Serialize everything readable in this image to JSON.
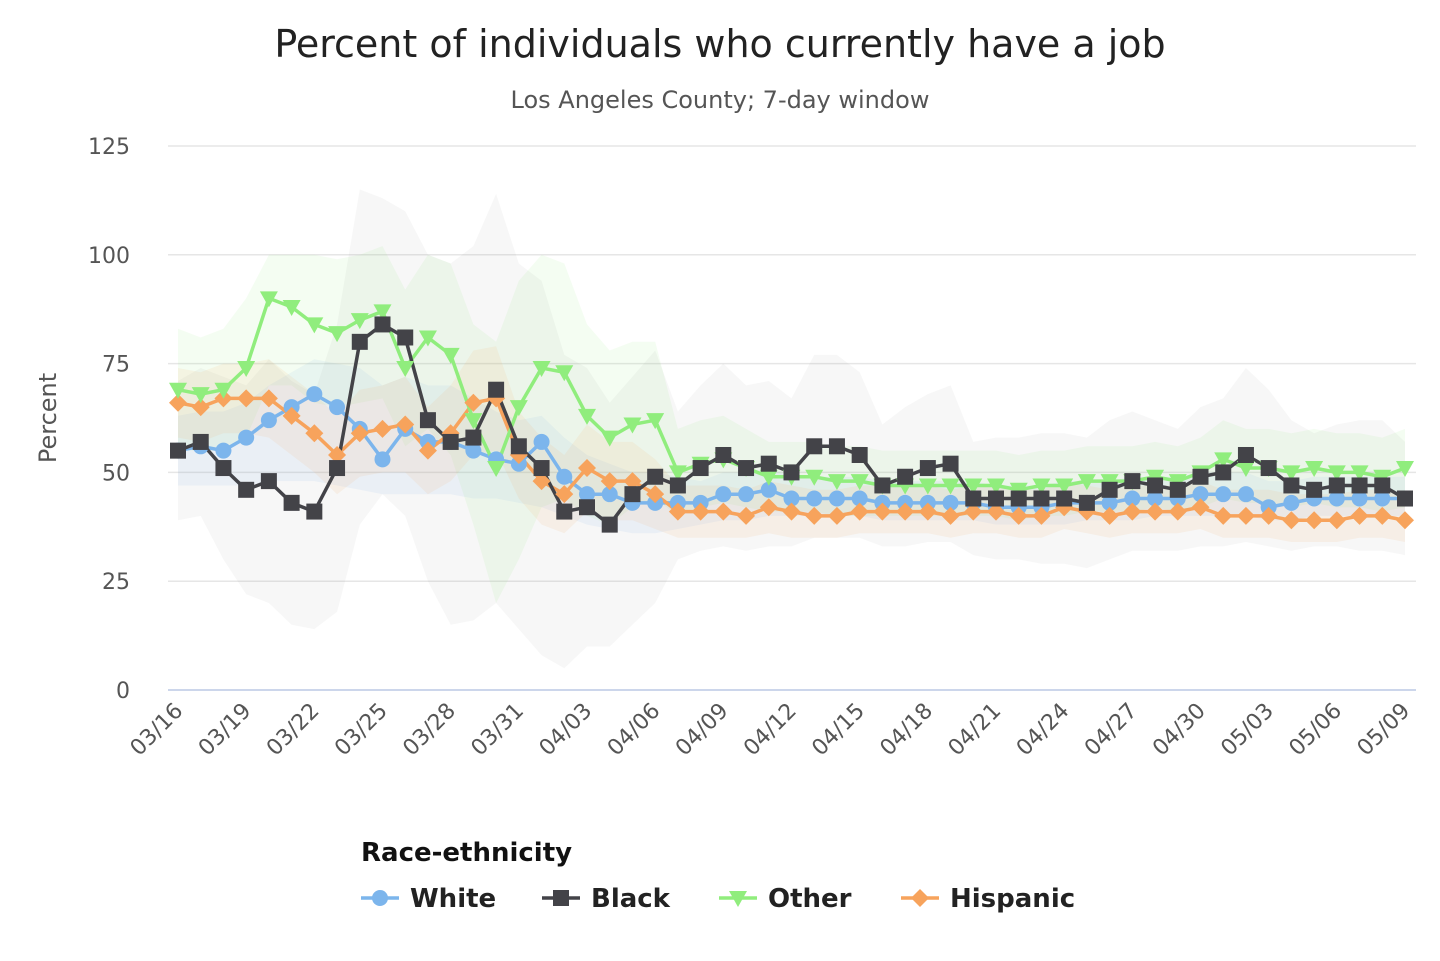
{
  "chart_data": {
    "type": "line",
    "title": "Percent of individuals who currently have a job",
    "subtitle": "Los Angeles County; 7-day window",
    "ylabel": "Percent",
    "xlabel": "",
    "ylim": [
      0,
      125
    ],
    "yticks": [
      "0",
      "25",
      "50",
      "75",
      "100",
      "125"
    ],
    "ytick_values": [
      0,
      25,
      50,
      75,
      100,
      125
    ],
    "x": [
      "03/16",
      "03/17",
      "03/18",
      "03/19",
      "03/20",
      "03/21",
      "03/22",
      "03/23",
      "03/24",
      "03/25",
      "03/26",
      "03/27",
      "03/28",
      "03/29",
      "03/30",
      "03/31",
      "04/01",
      "04/02",
      "04/03",
      "04/04",
      "04/05",
      "04/06",
      "04/07",
      "04/08",
      "04/09",
      "04/10",
      "04/11",
      "04/12",
      "04/13",
      "04/14",
      "04/15",
      "04/16",
      "04/17",
      "04/18",
      "04/19",
      "04/20",
      "04/21",
      "04/22",
      "04/23",
      "04/24",
      "04/25",
      "04/26",
      "04/27",
      "04/28",
      "04/29",
      "04/30",
      "05/01",
      "05/02",
      "05/03",
      "05/04",
      "05/05",
      "05/06",
      "05/07",
      "05/08",
      "05/09"
    ],
    "xtick_labels": [
      "03/16",
      "03/19",
      "03/22",
      "03/25",
      "03/28",
      "03/31",
      "04/03",
      "04/06",
      "04/09",
      "04/12",
      "04/15",
      "04/18",
      "04/21",
      "04/24",
      "04/27",
      "04/30",
      "05/03",
      "05/06",
      "05/09"
    ],
    "grid": true,
    "legend_title": "Race-ethnicity",
    "legend_position": "bottom-center",
    "series": [
      {
        "name": "White",
        "color": "#7cb5ec",
        "marker": "circle",
        "values": [
          55,
          56,
          55,
          58,
          62,
          65,
          68,
          65,
          60,
          53,
          60,
          57,
          57,
          55,
          53,
          52,
          57,
          49,
          45,
          45,
          43,
          43,
          43,
          43,
          45,
          45,
          46,
          44,
          44,
          44,
          44,
          43,
          43,
          43,
          43,
          43,
          42,
          42,
          42,
          43,
          43,
          43,
          44,
          44,
          44,
          45,
          45,
          45,
          42,
          43,
          44,
          44,
          44,
          44,
          44
        ],
        "band_low": [
          47,
          47,
          47,
          47,
          48,
          48,
          48,
          47,
          46,
          45,
          45,
          45,
          45,
          44,
          44,
          43,
          42,
          40,
          38,
          37,
          36,
          36,
          37,
          38,
          39,
          39,
          40,
          40,
          40,
          40,
          40,
          39,
          39,
          39,
          39,
          39,
          38,
          38,
          38,
          38,
          39,
          39,
          39,
          40,
          40,
          40,
          40,
          40,
          39,
          39,
          40,
          40,
          40,
          40,
          40
        ],
        "band_high": [
          63,
          64,
          64,
          66,
          70,
          73,
          76,
          75,
          74,
          70,
          72,
          70,
          70,
          67,
          64,
          62,
          63,
          58,
          54,
          52,
          50,
          50,
          49,
          48,
          50,
          50,
          51,
          49,
          49,
          49,
          49,
          48,
          48,
          48,
          48,
          48,
          47,
          47,
          47,
          48,
          48,
          48,
          49,
          49,
          49,
          50,
          50,
          50,
          48,
          48,
          49,
          49,
          49,
          49,
          49
        ]
      },
      {
        "name": "Black",
        "color": "#434348",
        "marker": "square",
        "values": [
          55,
          57,
          51,
          46,
          48,
          43,
          41,
          51,
          80,
          84,
          81,
          62,
          57,
          58,
          69,
          56,
          51,
          41,
          42,
          38,
          45,
          49,
          47,
          51,
          54,
          51,
          52,
          50,
          56,
          56,
          54,
          47,
          49,
          51,
          52,
          44,
          44,
          44,
          44,
          44,
          43,
          46,
          48,
          47,
          46,
          49,
          50,
          54,
          51,
          47,
          46,
          47,
          47,
          47,
          44
        ],
        "band_low": [
          39,
          40,
          30,
          22,
          20,
          15,
          14,
          18,
          38,
          45,
          40,
          25,
          15,
          16,
          20,
          14,
          8,
          5,
          10,
          10,
          15,
          20,
          30,
          32,
          33,
          32,
          33,
          33,
          35,
          35,
          35,
          33,
          33,
          34,
          34,
          31,
          30,
          30,
          29,
          29,
          28,
          30,
          32,
          32,
          32,
          33,
          33,
          34,
          33,
          32,
          33,
          33,
          32,
          32,
          31
        ],
        "band_high": [
          71,
          74,
          72,
          70,
          76,
          71,
          68,
          84,
          115,
          113,
          110,
          100,
          98,
          102,
          114,
          98,
          94,
          77,
          74,
          66,
          72,
          78,
          64,
          70,
          75,
          70,
          71,
          67,
          77,
          77,
          73,
          61,
          65,
          68,
          70,
          57,
          58,
          58,
          59,
          59,
          58,
          62,
          64,
          62,
          60,
          65,
          67,
          74,
          69,
          62,
          59,
          61,
          62,
          62,
          57
        ]
      },
      {
        "name": "Other",
        "color": "#90ed7d",
        "marker": "triangle-down",
        "values": [
          69,
          68,
          69,
          74,
          90,
          88,
          84,
          82,
          85,
          87,
          74,
          81,
          77,
          62,
          51,
          65,
          74,
          73,
          63,
          58,
          61,
          62,
          50,
          52,
          53,
          51,
          49,
          49,
          49,
          48,
          48,
          47,
          47,
          47,
          47,
          47,
          47,
          46,
          47,
          47,
          48,
          48,
          48,
          49,
          48,
          50,
          53,
          51,
          51,
          50,
          51,
          50,
          50,
          49,
          51
        ],
        "band_low": [
          55,
          55,
          55,
          58,
          70,
          70,
          66,
          65,
          66,
          67,
          56,
          60,
          54,
          38,
          20,
          30,
          42,
          44,
          40,
          38,
          42,
          44,
          40,
          42,
          43,
          42,
          41,
          41,
          41,
          40,
          40,
          40,
          40,
          40,
          40,
          40,
          40,
          39,
          40,
          40,
          41,
          41,
          41,
          42,
          41,
          42,
          44,
          43,
          43,
          42,
          43,
          42,
          42,
          41,
          42
        ],
        "band_high": [
          83,
          81,
          83,
          90,
          100,
          100,
          100,
          99,
          100,
          102,
          92,
          100,
          98,
          84,
          80,
          94,
          100,
          98,
          84,
          78,
          80,
          80,
          60,
          62,
          63,
          60,
          57,
          57,
          57,
          56,
          56,
          55,
          55,
          55,
          55,
          55,
          55,
          54,
          55,
          55,
          56,
          56,
          56,
          57,
          56,
          58,
          62,
          60,
          60,
          59,
          60,
          59,
          59,
          58,
          60
        ]
      },
      {
        "name": "Hispanic",
        "color": "#f7a35c",
        "marker": "diamond",
        "values": [
          66,
          65,
          67,
          67,
          67,
          63,
          59,
          54,
          59,
          60,
          61,
          55,
          59,
          66,
          67,
          54,
          48,
          45,
          51,
          48,
          48,
          45,
          41,
          41,
          41,
          40,
          42,
          41,
          40,
          40,
          41,
          41,
          41,
          41,
          40,
          41,
          41,
          40,
          40,
          42,
          41,
          40,
          41,
          41,
          41,
          42,
          40,
          40,
          40,
          39,
          39,
          39,
          40,
          40,
          39
        ],
        "band_low": [
          58,
          57,
          59,
          59,
          58,
          54,
          50,
          45,
          49,
          50,
          50,
          45,
          48,
          54,
          55,
          44,
          38,
          36,
          41,
          39,
          39,
          37,
          35,
          35,
          35,
          35,
          36,
          35,
          35,
          35,
          36,
          36,
          36,
          36,
          35,
          36,
          36,
          35,
          35,
          37,
          36,
          35,
          36,
          36,
          36,
          37,
          35,
          35,
          35,
          34,
          34,
          34,
          35,
          35,
          34
        ],
        "band_high": [
          74,
          73,
          75,
          75,
          76,
          72,
          68,
          63,
          69,
          70,
          72,
          65,
          70,
          78,
          79,
          64,
          58,
          54,
          61,
          57,
          57,
          53,
          47,
          47,
          47,
          46,
          48,
          47,
          46,
          46,
          47,
          47,
          47,
          47,
          46,
          47,
          47,
          46,
          46,
          48,
          47,
          46,
          47,
          47,
          47,
          48,
          46,
          46,
          46,
          45,
          45,
          45,
          46,
          46,
          45
        ]
      }
    ]
  }
}
